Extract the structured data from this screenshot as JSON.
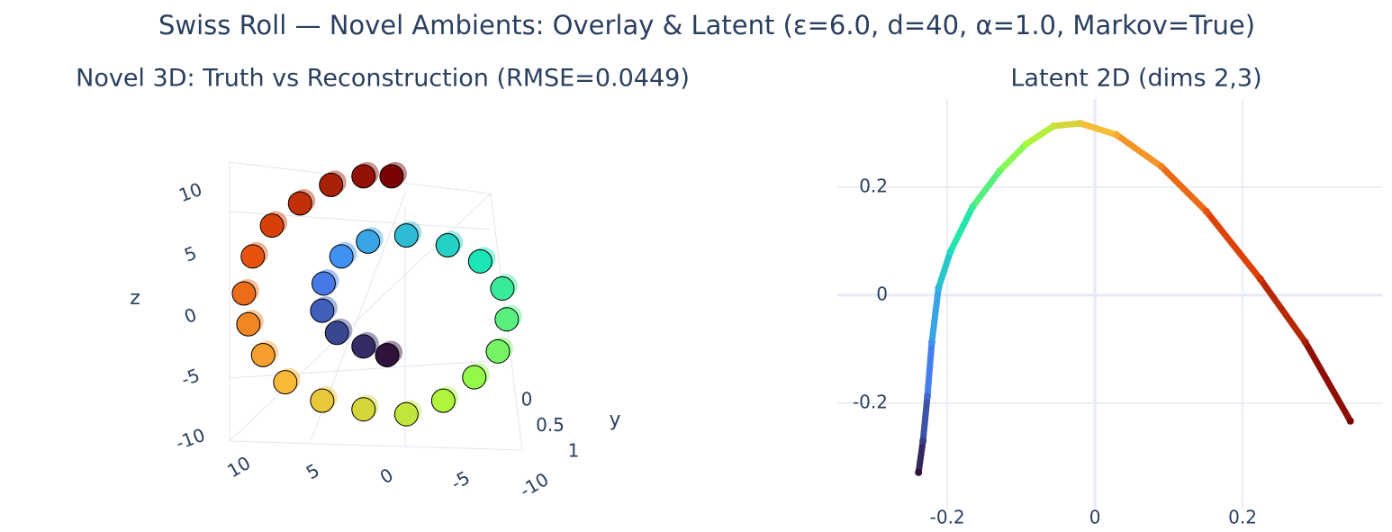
{
  "title": "Swiss Roll — Novel Ambients: Overlay & Latent  (ε=6.0, d=40, α=1.0, Markov=True)",
  "chart_data": [
    {
      "type": "scatter3d",
      "title": "Novel 3D: Truth vs Reconstruction (RMSE=0.0449)",
      "zlabel": "z",
      "ylabel": "y",
      "colorscale": [
        "#30123b",
        "#4686fb",
        "#1be5b5",
        "#a4fc3c",
        "#fbb938",
        "#e4460a",
        "#7a0403"
      ],
      "x": [
        0,
        1.6,
        3.4,
        4.4,
        4.3,
        3.1,
        1.3,
        -1.3,
        -4.1,
        -6.3,
        -7.8,
        -8.1,
        -7.5,
        -5.9,
        -3.8,
        -1.3,
        1.6,
        4.4,
        6.9,
        8.4,
        9.4,
        9.7,
        9.1,
        7.8,
        5.9,
        3.8,
        1.6,
        -0.3
      ],
      "z": [
        -3.1,
        -2.4,
        -1.3,
        0.5,
        2.7,
        4.9,
        6.1,
        6.6,
        5.8,
        4.5,
        2.3,
        -0.2,
        -2.8,
        -4.9,
        -6.8,
        -7.9,
        -7.5,
        -6.8,
        -5.3,
        -3.1,
        -0.6,
        1.9,
        4.9,
        7.4,
        9.2,
        10.7,
        11.4,
        11.4
      ],
      "xticks": [
        10,
        5,
        0,
        -5,
        -10
      ],
      "yticks": [
        0,
        0.5,
        1
      ],
      "zticks": [
        10,
        5,
        0,
        -5,
        -10
      ]
    },
    {
      "type": "line",
      "title": "Latent 2D (dims 2,3)",
      "colorscale": [
        "#30123b",
        "#4686fb",
        "#1be5b5",
        "#a4fc3c",
        "#fbb938",
        "#e4460a",
        "#7a0403"
      ],
      "x": [
        -0.239,
        -0.233,
        -0.227,
        -0.221,
        -0.212,
        -0.196,
        -0.166,
        -0.129,
        -0.093,
        -0.056,
        -0.02,
        0.029,
        0.09,
        0.151,
        0.224,
        0.285,
        0.346
      ],
      "y": [
        -0.328,
        -0.27,
        -0.187,
        -0.087,
        0.013,
        0.08,
        0.163,
        0.23,
        0.28,
        0.313,
        0.318,
        0.297,
        0.238,
        0.155,
        0.03,
        -0.087,
        -0.233
      ],
      "xlim": [
        -0.349,
        0.389
      ],
      "ylim": [
        -0.395,
        0.363
      ],
      "xticks": [
        -0.2,
        0,
        0.2
      ],
      "yticks": [
        -0.2,
        0,
        0.2
      ],
      "grid": true
    }
  ]
}
